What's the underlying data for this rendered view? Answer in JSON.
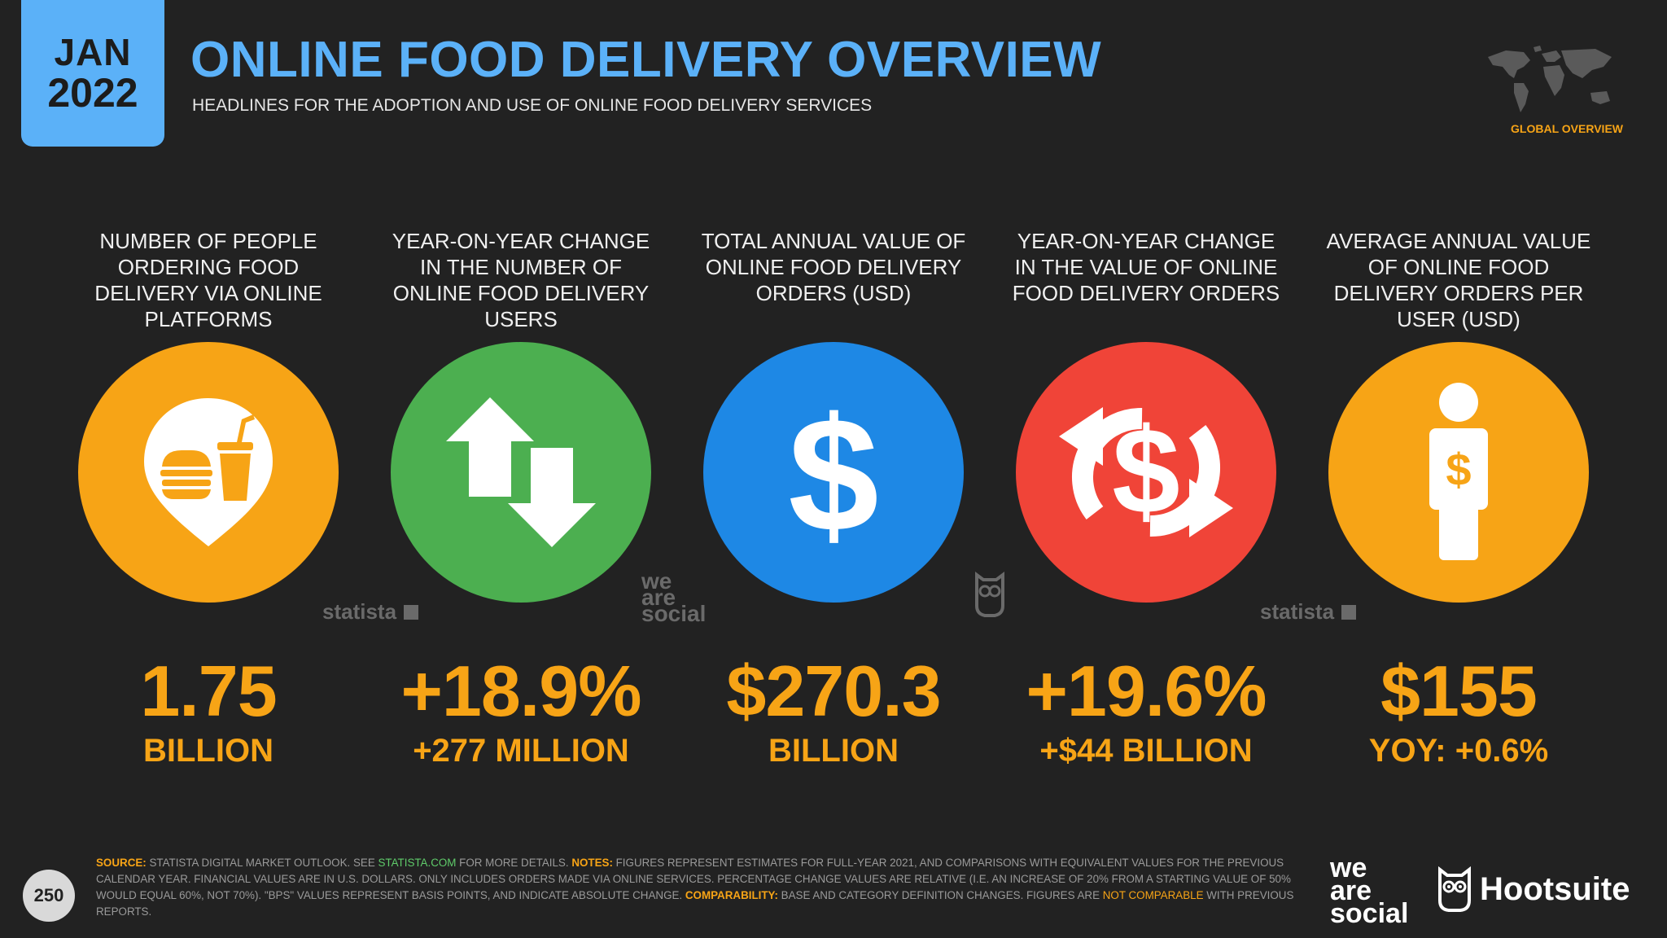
{
  "header": {
    "date_month": "JAN",
    "date_year": "2022",
    "title": "ONLINE FOOD DELIVERY OVERVIEW",
    "subtitle": "HEADLINES FOR THE ADOPTION AND USE OF ONLINE FOOD DELIVERY SERVICES",
    "region_label": "GLOBAL OVERVIEW"
  },
  "colors": {
    "background": "#222222",
    "accent_blue": "#5BB1F8",
    "value_orange": "#F7A416",
    "circle_orange": "#F7A416",
    "circle_green": "#4CAF50",
    "circle_blue": "#1E88E5",
    "circle_red": "#F04438"
  },
  "stats": [
    {
      "label": "NUMBER OF PEOPLE ORDERING FOOD DELIVERY VIA ONLINE PLATFORMS",
      "icon": "food-location-pin-icon",
      "value": "1.75",
      "unit": "BILLION"
    },
    {
      "label": "YEAR-ON-YEAR CHANGE IN THE NUMBER OF ONLINE FOOD DELIVERY USERS",
      "icon": "up-down-arrows-icon",
      "value": "+18.9%",
      "unit": "+277 MILLION"
    },
    {
      "label": "TOTAL ANNUAL VALUE OF ONLINE FOOD DELIVERY ORDERS (USD)",
      "icon": "dollar-sign-icon",
      "value": "$270.3",
      "unit": "BILLION"
    },
    {
      "label": "YEAR-ON-YEAR CHANGE IN THE VALUE OF ONLINE FOOD DELIVERY ORDERS",
      "icon": "dollar-exchange-arrows-icon",
      "value": "+19.6%",
      "unit": "+$44 BILLION"
    },
    {
      "label": "AVERAGE ANNUAL VALUE OF ONLINE FOOD DELIVERY ORDERS PER USER (USD)",
      "icon": "person-dollar-icon",
      "value": "$155",
      "unit": "YOY: +0.6%"
    }
  ],
  "watermarks": {
    "statista": "statista",
    "was_we": "we",
    "was_are": "are",
    "was_social": "social"
  },
  "footer": {
    "page_number": "250",
    "source_label": "SOURCE:",
    "source_text": " STATISTA DIGITAL MARKET OUTLOOK. SEE ",
    "source_link": "STATISTA.COM",
    "source_after": " FOR MORE DETAILS. ",
    "notes_label": "NOTES:",
    "notes_text": " FIGURES REPRESENT ESTIMATES FOR FULL-YEAR 2021, AND COMPARISONS WITH EQUIVALENT VALUES FOR THE PREVIOUS CALENDAR YEAR. FINANCIAL VALUES ARE IN U.S. DOLLARS. ONLY INCLUDES ORDERS MADE VIA ONLINE SERVICES. PERCENTAGE CHANGE VALUES ARE RELATIVE (I.E. AN INCREASE OF 20% FROM A STARTING VALUE OF 50% WOULD EQUAL 60%, NOT 70%). \"BPS\" VALUES REPRESENT BASIS POINTS, AND INDICATE ABSOLUTE CHANGE. ",
    "comparability_label": "COMPARABILITY:",
    "comparability_text": " BASE AND CATEGORY DEFINITION CHANGES. FIGURES ARE ",
    "not_comparable": "NOT COMPARABLE",
    "comparability_after": " WITH PREVIOUS REPORTS.",
    "brand_we": "we",
    "brand_are": "are",
    "brand_social": "social",
    "brand_hootsuite": "Hootsuite"
  }
}
